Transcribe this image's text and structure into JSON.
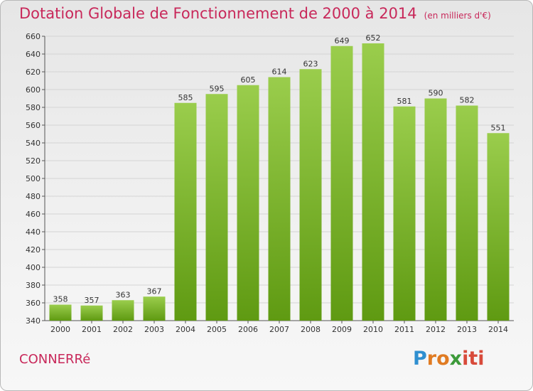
{
  "title": "Dotation Globale de Fonctionnement de 2000 à 2014",
  "unit": "(en milliers d'€)",
  "place": "CONNERRé",
  "logo": {
    "text": "Proxiti",
    "parts": [
      "P",
      "ro",
      "x",
      "iti"
    ]
  },
  "colors": {
    "bar_top": "#9acd4c",
    "bar_bottom": "#5f9a12",
    "title": "#c8285a"
  },
  "chart_data": {
    "type": "bar",
    "title": "Dotation Globale de Fonctionnement de 2000 à 2014",
    "categories": [
      "2000",
      "2001",
      "2002",
      "2003",
      "2004",
      "2005",
      "2006",
      "2007",
      "2008",
      "2009",
      "2010",
      "2011",
      "2012",
      "2013",
      "2014"
    ],
    "values": [
      358,
      357,
      363,
      367,
      585,
      595,
      605,
      614,
      623,
      649,
      652,
      581,
      590,
      582,
      551
    ],
    "ylim": [
      340,
      660
    ],
    "yticks": [
      340,
      360,
      380,
      400,
      420,
      440,
      460,
      480,
      500,
      520,
      540,
      560,
      580,
      600,
      620,
      640,
      660
    ],
    "grid": true,
    "xlabel": "",
    "ylabel": ""
  }
}
